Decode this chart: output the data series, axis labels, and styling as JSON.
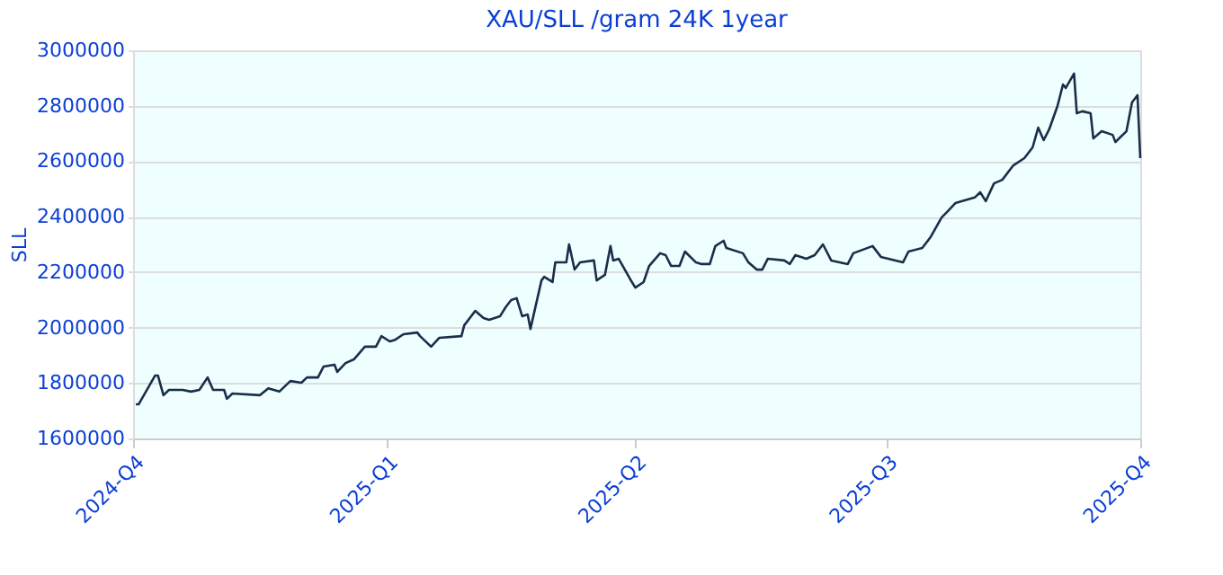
{
  "chart_data": {
    "type": "line",
    "title": "XAU/SLL /gram 24K 1year",
    "ylabel": "SLL",
    "x": [
      "2024-10-02",
      "2024-10-03",
      "2024-10-09",
      "2024-10-10",
      "2024-10-12",
      "2024-10-14",
      "2024-10-19",
      "2024-10-22",
      "2024-10-25",
      "2024-10-28",
      "2024-10-30",
      "2024-11-03",
      "2024-11-04",
      "2024-11-06",
      "2024-11-16",
      "2024-11-19",
      "2024-11-23",
      "2024-11-27",
      "2024-12-01",
      "2024-12-03",
      "2024-12-07",
      "2024-12-09",
      "2024-12-13",
      "2024-12-14",
      "2024-12-17",
      "2024-12-20",
      "2024-12-24",
      "2024-12-28",
      "2024-12-30",
      "2025-01-02",
      "2025-01-04",
      "2025-01-07",
      "2025-01-12",
      "2025-01-13",
      "2025-01-17",
      "2025-01-20",
      "2025-01-28",
      "2025-01-29",
      "2025-02-02",
      "2025-02-05",
      "2025-02-07",
      "2025-02-11",
      "2025-02-13",
      "2025-02-15",
      "2025-02-17",
      "2025-02-19",
      "2025-02-21",
      "2025-02-22",
      "2025-02-26",
      "2025-02-27",
      "2025-03-02",
      "2025-03-03",
      "2025-03-07",
      "2025-03-08",
      "2025-03-10",
      "2025-03-12",
      "2025-03-17",
      "2025-03-18",
      "2025-03-21",
      "2025-03-23",
      "2025-03-24",
      "2025-03-26",
      "2025-03-30",
      "2025-04-01",
      "2025-04-04",
      "2025-04-06",
      "2025-04-10",
      "2025-04-12",
      "2025-04-14",
      "2025-04-17",
      "2025-04-19",
      "2025-04-23",
      "2025-04-25",
      "2025-04-28",
      "2025-04-30",
      "2025-05-03",
      "2025-05-04",
      "2025-05-10",
      "2025-05-12",
      "2025-05-15",
      "2025-05-17",
      "2025-05-19",
      "2025-05-25",
      "2025-05-27",
      "2025-05-29",
      "2025-06-02",
      "2025-06-05",
      "2025-06-08",
      "2025-06-11",
      "2025-06-17",
      "2025-06-19",
      "2025-06-26",
      "2025-06-29",
      "2025-07-07",
      "2025-07-09",
      "2025-07-14",
      "2025-07-17",
      "2025-07-21",
      "2025-07-23",
      "2025-07-26",
      "2025-08-02",
      "2025-08-04",
      "2025-08-06",
      "2025-08-09",
      "2025-08-12",
      "2025-08-16",
      "2025-08-20",
      "2025-08-23",
      "2025-08-25",
      "2025-08-27",
      "2025-08-29",
      "2025-09-01",
      "2025-09-03",
      "2025-09-04",
      "2025-09-07",
      "2025-09-08",
      "2025-09-10",
      "2025-09-13",
      "2025-09-14",
      "2025-09-17",
      "2025-09-21",
      "2025-09-22",
      "2025-09-24",
      "2025-09-26",
      "2025-09-28",
      "2025-09-30",
      "2025-10-01"
    ],
    "series": [
      {
        "color": "#1a2e4a",
        "values": [
          1723000,
          1723000,
          1827000,
          1827000,
          1756000,
          1775000,
          1775000,
          1769000,
          1775000,
          1820000,
          1775000,
          1775000,
          1743000,
          1762000,
          1756000,
          1781000,
          1769000,
          1807000,
          1801000,
          1820000,
          1820000,
          1859000,
          1866000,
          1840000,
          1872000,
          1885000,
          1931000,
          1931000,
          1969000,
          1950000,
          1956000,
          1976000,
          1982000,
          1969000,
          1931000,
          1963000,
          1969000,
          2008000,
          2060000,
          2034000,
          2028000,
          2041000,
          2073000,
          2099000,
          2106000,
          2041000,
          2047000,
          1995000,
          2170000,
          2183000,
          2164000,
          2235000,
          2235000,
          2300000,
          2209000,
          2235000,
          2242000,
          2170000,
          2190000,
          2294000,
          2242000,
          2248000,
          2177000,
          2144000,
          2164000,
          2222000,
          2268000,
          2261000,
          2222000,
          2222000,
          2274000,
          2235000,
          2229000,
          2229000,
          2294000,
          2313000,
          2287000,
          2268000,
          2235000,
          2209000,
          2209000,
          2248000,
          2242000,
          2229000,
          2261000,
          2248000,
          2261000,
          2300000,
          2242000,
          2229000,
          2268000,
          2294000,
          2255000,
          2235000,
          2274000,
          2287000,
          2326000,
          2397000,
          2417000,
          2449000,
          2469000,
          2488000,
          2456000,
          2520000,
          2533000,
          2585000,
          2611000,
          2650000,
          2721000,
          2676000,
          2715000,
          2799000,
          2877000,
          2864000,
          2916000,
          2773000,
          2780000,
          2773000,
          2682000,
          2708000,
          2695000,
          2669000,
          2689000,
          2708000,
          2812000,
          2838000,
          2611000
        ]
      }
    ],
    "xlim": [
      "2024-10-01",
      "2025-10-01"
    ],
    "xticks": [
      {
        "value": "2024-10-01",
        "label": "2024-Q4"
      },
      {
        "value": "2025-01-01",
        "label": "2025-Q1"
      },
      {
        "value": "2025-04-01",
        "label": "2025-Q2"
      },
      {
        "value": "2025-07-01",
        "label": "2025-Q3"
      },
      {
        "value": "2025-10-01",
        "label": "2025-Q4"
      }
    ],
    "ylim": [
      1600000,
      3000000
    ],
    "yticks": [
      1600000,
      1800000,
      2000000,
      2200000,
      2400000,
      2600000,
      2800000,
      3000000
    ],
    "grid": "y",
    "legend": false,
    "marker": "none",
    "line_style": "solid"
  }
}
